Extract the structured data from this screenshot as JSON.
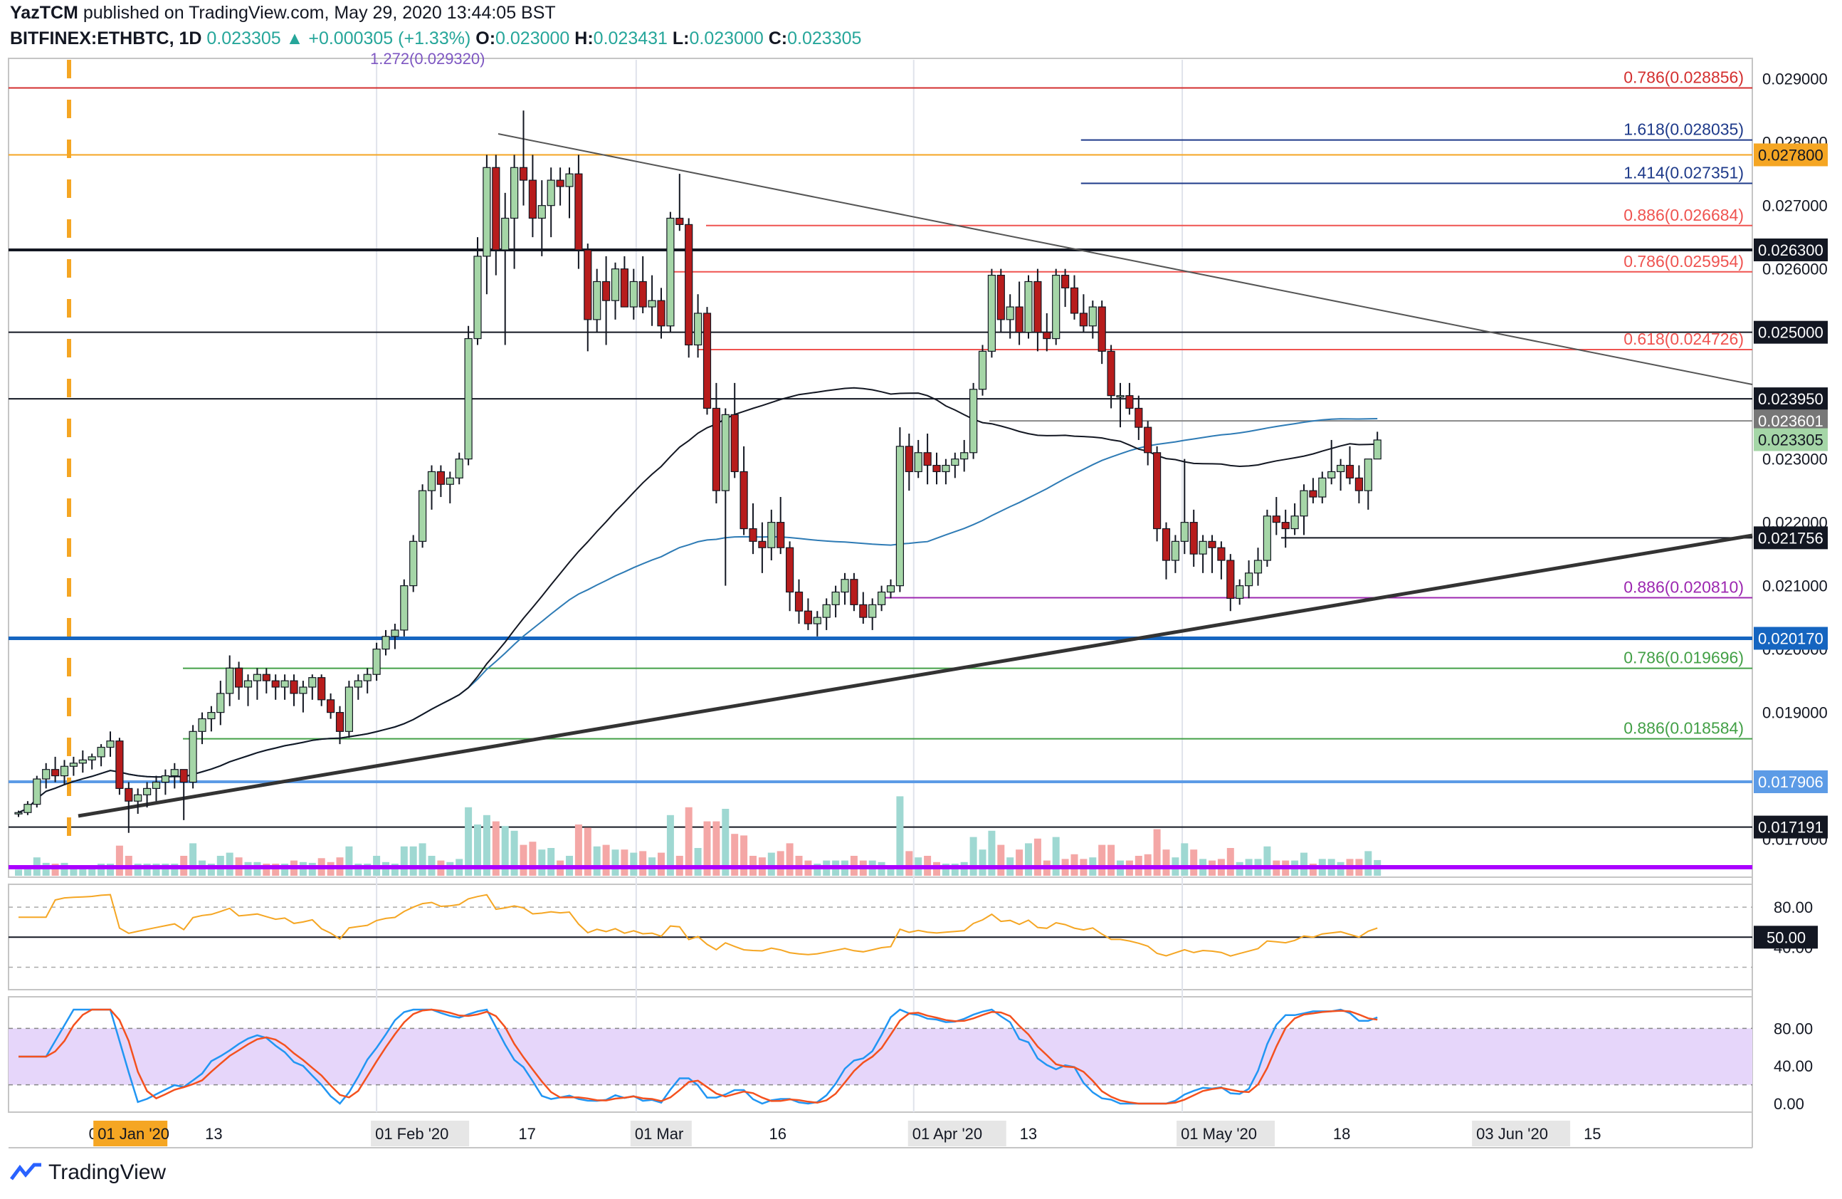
{
  "header": {
    "publisher": "YazTCM",
    "published_text": "published on TradingView.com, May 29, 2020 13:44:05 BST",
    "symbol": "BITFINEX:ETHBTC, 1D",
    "last": "0.023305",
    "change": "+0.000305 (+1.33%)",
    "o_label": "O:",
    "o": "0.023000",
    "h_label": "H:",
    "h": "0.023431",
    "l_label": "L:",
    "l": "0.023000",
    "c_label": "C:",
    "c": "0.023305"
  },
  "footer": {
    "brand": "TradingView"
  },
  "colors": {
    "up": "#26a69a",
    "down": "#ef5350",
    "candle_up": "#a5d6a7",
    "candle_down": "#b71c1c",
    "fib_red": "#ef5350",
    "fib_blue": "#1e3a8a",
    "fib_green": "#43a047",
    "fib_purple": "#9c27b0",
    "orange": "#f5a623",
    "ma_blue": "#2e7bb5",
    "rsi_orange": "#f5a623",
    "stoch_blue": "#2196f3",
    "stoch_red": "#f4511e"
  },
  "chart_data": {
    "type": "candlestick",
    "interval": "1D",
    "price_axis": {
      "min": 0.0164,
      "max": 0.0293,
      "ticks": [
        "0.029000",
        "0.028000",
        "0.027000",
        "0.026000",
        "0.025000",
        "0.023000",
        "0.022000",
        "0.021000",
        "0.020000",
        "0.019000",
        "0.017000"
      ]
    },
    "x_labels": [
      "01",
      "01 Jan '20",
      "13",
      "01 Feb '20",
      "17",
      "01 Mar",
      "16",
      "01 Apr '20",
      "13",
      "01 May '20",
      "18",
      "03 Jun '20",
      "15"
    ],
    "x_label_days": [
      -1,
      0,
      12,
      31,
      47,
      60,
      75,
      91,
      103,
      121,
      138,
      154,
      166
    ],
    "levels": [
      {
        "label": "0.786",
        "value": "0.028856",
        "price": 0.028856,
        "color": "#d32f2f",
        "x0": 0
      },
      {
        "label": "1.618",
        "value": "0.028035",
        "price": 0.028035,
        "color": "#1e3a8a",
        "x0": 0.615
      },
      {
        "label": "1.414",
        "value": "0.027351",
        "price": 0.027351,
        "color": "#1e3a8a",
        "x0": 0.615
      },
      {
        "label": "0.886",
        "value": "0.026684",
        "price": 0.026684,
        "color": "#ef5350",
        "x0": 0.4
      },
      {
        "label": "0.786",
        "value": "0.025954",
        "price": 0.025954,
        "color": "#ef5350",
        "x0": 0.38
      },
      {
        "label": "0.618",
        "value": "0.024726",
        "price": 0.024726,
        "color": "#ef5350",
        "x0": 0.395
      },
      {
        "label": "0.886",
        "value": "0.020810",
        "price": 0.02081,
        "color": "#9c27b0",
        "x0": 0.5
      },
      {
        "label": "0.786",
        "value": "0.019696",
        "price": 0.019696,
        "color": "#43a047",
        "x0": 0.1
      },
      {
        "label": "0.886",
        "value": "0.018584",
        "price": 0.018584,
        "color": "#43a047",
        "x0": 0.1
      }
    ],
    "price_tags": [
      {
        "value": "0.027800",
        "price": 0.0278,
        "bg": "#f5a623",
        "fg": "#131722"
      },
      {
        "value": "0.026300",
        "price": 0.0263,
        "bg": "#131722",
        "fg": "#ffffff"
      },
      {
        "value": "0.025000",
        "price": 0.025,
        "bg": "#131722",
        "fg": "#ffffff"
      },
      {
        "value": "0.023950",
        "price": 0.02395,
        "bg": "#131722",
        "fg": "#ffffff"
      },
      {
        "value": "0.023601",
        "price": 0.023601,
        "bg": "#777777",
        "fg": "#ffffff"
      },
      {
        "value": "0.023305",
        "price": 0.023305,
        "bg": "#a5d6a7",
        "fg": "#131722"
      },
      {
        "value": "0.021756",
        "price": 0.021756,
        "bg": "#131722",
        "fg": "#ffffff"
      },
      {
        "value": "0.020170",
        "price": 0.02017,
        "bg": "#1565c0",
        "fg": "#ffffff"
      },
      {
        "value": "0.017906",
        "price": 0.017906,
        "bg": "#5c9be6",
        "fg": "#ffffff"
      },
      {
        "value": "0.017191",
        "price": 0.017191,
        "bg": "#131722",
        "fg": "#ffffff"
      }
    ],
    "top_fib_text": "1.272(0.029320)",
    "rsi": {
      "ticks": [
        "80.00",
        "40.00"
      ],
      "current": "50.00"
    },
    "stoch": {
      "ticks": [
        "80.00",
        "40.00",
        "0.00"
      ]
    },
    "candles": [
      [
        0.0174,
        0.01745,
        0.01735,
        0.01742
      ],
      [
        0.01742,
        0.0176,
        0.01738,
        0.01755
      ],
      [
        0.01755,
        0.018,
        0.0175,
        0.01795
      ],
      [
        0.01795,
        0.0182,
        0.0178,
        0.0181
      ],
      [
        0.0181,
        0.0183,
        0.0179,
        0.018
      ],
      [
        0.018,
        0.01825,
        0.01785,
        0.01815
      ],
      [
        0.01815,
        0.0183,
        0.018,
        0.0182
      ],
      [
        0.0182,
        0.0184,
        0.01805,
        0.01825
      ],
      [
        0.01825,
        0.01835,
        0.0181,
        0.0183
      ],
      [
        0.0183,
        0.0185,
        0.01815,
        0.01845
      ],
      [
        0.01845,
        0.0187,
        0.0183,
        0.01855
      ],
      [
        0.01855,
        0.0186,
        0.0177,
        0.0178
      ],
      [
        0.0178,
        0.0179,
        0.0171,
        0.0176
      ],
      [
        0.0176,
        0.0178,
        0.0174,
        0.0177
      ],
      [
        0.0177,
        0.0179,
        0.0175,
        0.0178
      ],
      [
        0.0178,
        0.018,
        0.0176,
        0.0179
      ],
      [
        0.0179,
        0.0181,
        0.0177,
        0.018
      ],
      [
        0.018,
        0.0182,
        0.0178,
        0.0181
      ],
      [
        0.0181,
        0.0181,
        0.0173,
        0.0179
      ],
      [
        0.0179,
        0.0188,
        0.0178,
        0.0187
      ],
      [
        0.0187,
        0.019,
        0.0185,
        0.0189
      ],
      [
        0.0189,
        0.0191,
        0.0187,
        0.019
      ],
      [
        0.019,
        0.0195,
        0.0188,
        0.0193
      ],
      [
        0.0193,
        0.0199,
        0.0191,
        0.0197
      ],
      [
        0.0197,
        0.0198,
        0.0192,
        0.0194
      ],
      [
        0.0194,
        0.0196,
        0.0191,
        0.0195
      ],
      [
        0.0195,
        0.0197,
        0.0192,
        0.0196
      ],
      [
        0.0196,
        0.0197,
        0.0193,
        0.0195
      ],
      [
        0.0195,
        0.0196,
        0.0192,
        0.0194
      ],
      [
        0.0194,
        0.0196,
        0.0192,
        0.0195
      ],
      [
        0.0195,
        0.0196,
        0.0191,
        0.0193
      ],
      [
        0.0193,
        0.0195,
        0.019,
        0.0194
      ],
      [
        0.0194,
        0.0196,
        0.0192,
        0.01955
      ],
      [
        0.01955,
        0.0196,
        0.0191,
        0.0192
      ],
      [
        0.0192,
        0.0193,
        0.0189,
        0.019
      ],
      [
        0.019,
        0.0191,
        0.0185,
        0.0187
      ],
      [
        0.0187,
        0.0195,
        0.0186,
        0.0194
      ],
      [
        0.0194,
        0.0196,
        0.0192,
        0.0195
      ],
      [
        0.0195,
        0.0197,
        0.0193,
        0.0196
      ],
      [
        0.0196,
        0.0201,
        0.0195,
        0.02
      ],
      [
        0.02,
        0.0203,
        0.0199,
        0.0202
      ],
      [
        0.0202,
        0.0204,
        0.02,
        0.0203
      ],
      [
        0.0203,
        0.0211,
        0.0202,
        0.021
      ],
      [
        0.021,
        0.0218,
        0.0209,
        0.0217
      ],
      [
        0.0217,
        0.0226,
        0.0216,
        0.0225
      ],
      [
        0.0225,
        0.0229,
        0.0222,
        0.0228
      ],
      [
        0.0228,
        0.0229,
        0.0224,
        0.0226
      ],
      [
        0.0226,
        0.0228,
        0.0223,
        0.0227
      ],
      [
        0.0227,
        0.0231,
        0.0226,
        0.023
      ],
      [
        0.023,
        0.0251,
        0.0229,
        0.0249
      ],
      [
        0.0249,
        0.0265,
        0.0248,
        0.0262
      ],
      [
        0.0262,
        0.0278,
        0.0256,
        0.0276
      ],
      [
        0.0276,
        0.0278,
        0.0259,
        0.0263
      ],
      [
        0.0263,
        0.0272,
        0.0248,
        0.0268
      ],
      [
        0.0268,
        0.0278,
        0.026,
        0.0276
      ],
      [
        0.0276,
        0.0285,
        0.027,
        0.0274
      ],
      [
        0.0274,
        0.0278,
        0.0265,
        0.0268
      ],
      [
        0.0268,
        0.0274,
        0.0262,
        0.027
      ],
      [
        0.027,
        0.0276,
        0.0265,
        0.0274
      ],
      [
        0.0274,
        0.0276,
        0.027,
        0.0273
      ],
      [
        0.0273,
        0.0276,
        0.0268,
        0.0275
      ],
      [
        0.0275,
        0.0278,
        0.026,
        0.0263
      ],
      [
        0.0263,
        0.0264,
        0.0247,
        0.0252
      ],
      [
        0.0252,
        0.026,
        0.025,
        0.0258
      ],
      [
        0.0258,
        0.0262,
        0.0248,
        0.0255
      ],
      [
        0.0255,
        0.0261,
        0.0252,
        0.026
      ],
      [
        0.026,
        0.0262,
        0.0254,
        0.0254
      ],
      [
        0.0254,
        0.026,
        0.0252,
        0.0258
      ],
      [
        0.0258,
        0.0262,
        0.0253,
        0.0254
      ],
      [
        0.0254,
        0.0259,
        0.0251,
        0.0255
      ],
      [
        0.0255,
        0.0257,
        0.0249,
        0.0251
      ],
      [
        0.0251,
        0.0269,
        0.025,
        0.0268
      ],
      [
        0.0268,
        0.0275,
        0.0266,
        0.0267
      ],
      [
        0.0267,
        0.0268,
        0.0246,
        0.0248
      ],
      [
        0.0248,
        0.0256,
        0.0246,
        0.0253
      ],
      [
        0.0253,
        0.0254,
        0.0237,
        0.0238
      ],
      [
        0.0238,
        0.0242,
        0.0223,
        0.0225
      ],
      [
        0.0225,
        0.0238,
        0.021,
        0.0237
      ],
      [
        0.0237,
        0.0242,
        0.0227,
        0.0228
      ],
      [
        0.0228,
        0.0232,
        0.0218,
        0.0219
      ],
      [
        0.0219,
        0.0223,
        0.0215,
        0.0217
      ],
      [
        0.0217,
        0.022,
        0.0212,
        0.0216
      ],
      [
        0.0216,
        0.0222,
        0.0214,
        0.022
      ],
      [
        0.022,
        0.0224,
        0.0215,
        0.0216
      ],
      [
        0.0216,
        0.0217,
        0.0206,
        0.0209
      ],
      [
        0.0209,
        0.0211,
        0.0204,
        0.0206
      ],
      [
        0.0206,
        0.0208,
        0.0203,
        0.0204
      ],
      [
        0.0204,
        0.0206,
        0.0202,
        0.0205
      ],
      [
        0.0205,
        0.0208,
        0.0203,
        0.0207
      ],
      [
        0.0207,
        0.021,
        0.0205,
        0.0209
      ],
      [
        0.0209,
        0.0212,
        0.0207,
        0.0211
      ],
      [
        0.0211,
        0.0212,
        0.0206,
        0.0207
      ],
      [
        0.0207,
        0.0209,
        0.0204,
        0.0205
      ],
      [
        0.0205,
        0.0208,
        0.0203,
        0.0207
      ],
      [
        0.0207,
        0.021,
        0.0206,
        0.0209
      ],
      [
        0.0209,
        0.0211,
        0.0208,
        0.021
      ],
      [
        0.021,
        0.0235,
        0.0209,
        0.0232
      ],
      [
        0.0232,
        0.0234,
        0.0225,
        0.0228
      ],
      [
        0.0228,
        0.0233,
        0.0227,
        0.0231
      ],
      [
        0.0231,
        0.0234,
        0.0226,
        0.0229
      ],
      [
        0.0229,
        0.0231,
        0.0226,
        0.0228
      ],
      [
        0.0228,
        0.023,
        0.0226,
        0.0229
      ],
      [
        0.0229,
        0.0231,
        0.0227,
        0.023
      ],
      [
        0.023,
        0.0233,
        0.0228,
        0.0231
      ],
      [
        0.0231,
        0.0242,
        0.023,
        0.0241
      ],
      [
        0.0241,
        0.0248,
        0.024,
        0.0247
      ],
      [
        0.0247,
        0.026,
        0.0246,
        0.0259
      ],
      [
        0.0259,
        0.026,
        0.025,
        0.0252
      ],
      [
        0.0252,
        0.0256,
        0.0249,
        0.0254
      ],
      [
        0.0254,
        0.0258,
        0.0248,
        0.025
      ],
      [
        0.025,
        0.0259,
        0.0249,
        0.0258
      ],
      [
        0.0258,
        0.026,
        0.0247,
        0.025
      ],
      [
        0.025,
        0.0253,
        0.0247,
        0.0249
      ],
      [
        0.0249,
        0.026,
        0.0248,
        0.0259
      ],
      [
        0.0259,
        0.026,
        0.0254,
        0.0257
      ],
      [
        0.0257,
        0.0259,
        0.0252,
        0.0253
      ],
      [
        0.0253,
        0.0256,
        0.025,
        0.0251
      ],
      [
        0.0251,
        0.0255,
        0.0249,
        0.0254
      ],
      [
        0.0254,
        0.0255,
        0.0245,
        0.0247
      ],
      [
        0.0247,
        0.0248,
        0.0238,
        0.024
      ],
      [
        0.024,
        0.0242,
        0.0235,
        0.024
      ],
      [
        0.024,
        0.0242,
        0.0237,
        0.0238
      ],
      [
        0.0238,
        0.024,
        0.0233,
        0.0235
      ],
      [
        0.0235,
        0.0236,
        0.0229,
        0.0231
      ],
      [
        0.0231,
        0.0232,
        0.0217,
        0.0219
      ],
      [
        0.0219,
        0.022,
        0.0211,
        0.0214
      ],
      [
        0.0214,
        0.0218,
        0.0212,
        0.0217
      ],
      [
        0.0217,
        0.023,
        0.0215,
        0.022
      ],
      [
        0.022,
        0.0222,
        0.0213,
        0.0215
      ],
      [
        0.0215,
        0.0218,
        0.0212,
        0.0217
      ],
      [
        0.0217,
        0.0218,
        0.0212,
        0.0216
      ],
      [
        0.0216,
        0.0217,
        0.0211,
        0.0214
      ],
      [
        0.0214,
        0.0215,
        0.0206,
        0.0208
      ],
      [
        0.0208,
        0.0211,
        0.0207,
        0.021
      ],
      [
        0.021,
        0.0214,
        0.0208,
        0.0212
      ],
      [
        0.0212,
        0.0216,
        0.021,
        0.0214
      ],
      [
        0.0214,
        0.0222,
        0.0213,
        0.0221
      ],
      [
        0.0221,
        0.0224,
        0.0218,
        0.022
      ],
      [
        0.022,
        0.0222,
        0.0216,
        0.0219
      ],
      [
        0.0219,
        0.0223,
        0.0218,
        0.0221
      ],
      [
        0.0221,
        0.0226,
        0.0218,
        0.0225
      ],
      [
        0.0225,
        0.0227,
        0.0223,
        0.0224
      ],
      [
        0.0224,
        0.0228,
        0.0223,
        0.0227
      ],
      [
        0.0227,
        0.0233,
        0.0226,
        0.0228
      ],
      [
        0.0228,
        0.023,
        0.0225,
        0.0229
      ],
      [
        0.0229,
        0.0232,
        0.0226,
        0.0227
      ],
      [
        0.0227,
        0.0229,
        0.0223,
        0.0225
      ],
      [
        0.0225,
        0.023,
        0.0222,
        0.023
      ],
      [
        0.023,
        0.02343,
        0.023,
        0.0233
      ]
    ]
  }
}
